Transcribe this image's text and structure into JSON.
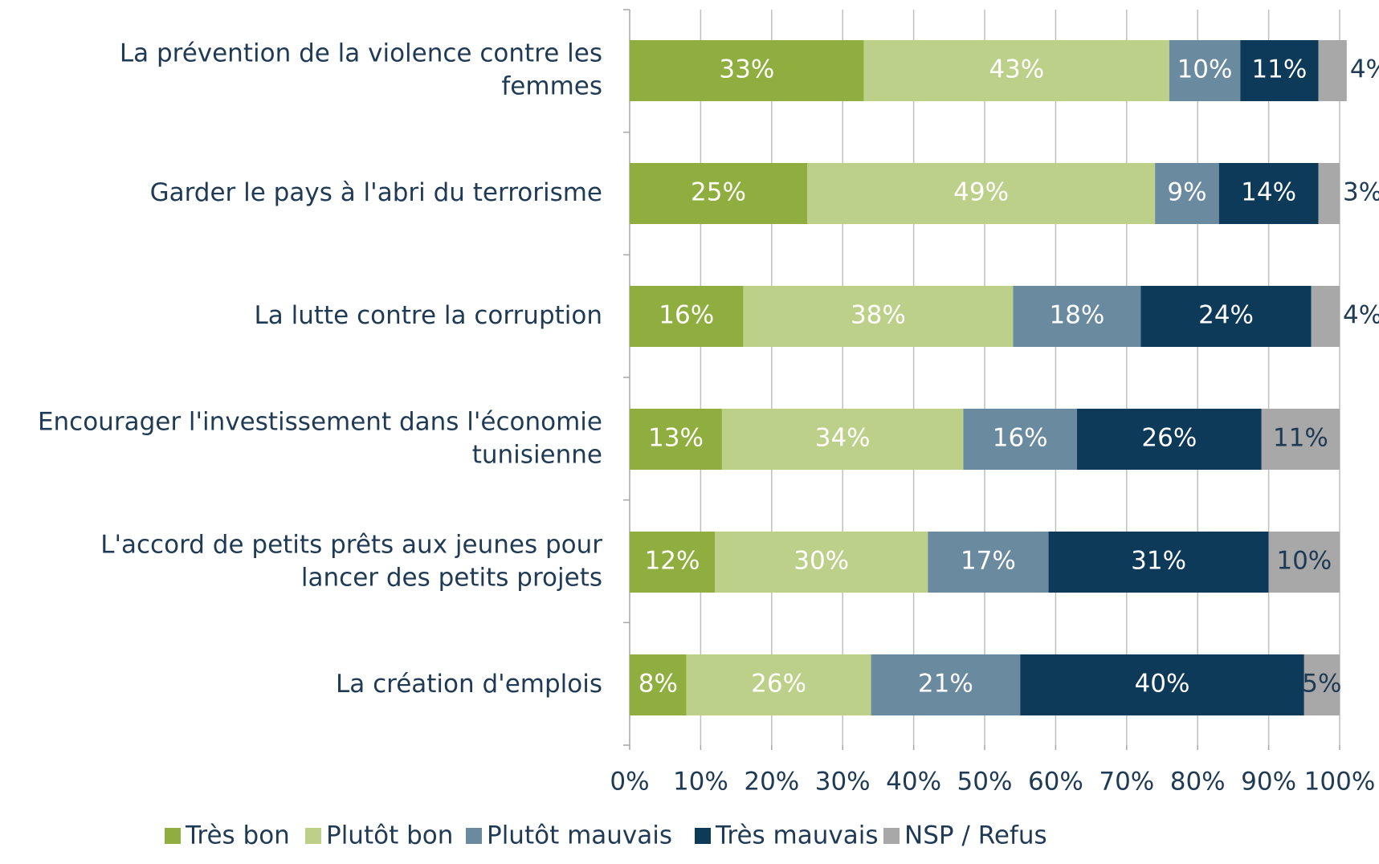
{
  "chart_data": {
    "type": "stacked_bar_horizontal",
    "categories": [
      [
        "La prévention de la violence contre les",
        "femmes"
      ],
      [
        "Garder le pays à l'abri du terrorisme"
      ],
      [
        "La lutte contre la corruption"
      ],
      [
        "Encourager l'investissement dans l'économie",
        "tunisienne"
      ],
      [
        "L'accord de petits prêts aux jeunes pour",
        "lancer des petits projets"
      ],
      [
        "La création d'emplois"
      ]
    ],
    "series": [
      {
        "name": "Très bon",
        "color": "#8fae3f",
        "values": [
          33,
          25,
          16,
          13,
          12,
          8
        ],
        "value_labels": [
          "33%",
          "25%",
          "16%",
          "13%",
          "12%",
          "8%"
        ]
      },
      {
        "name": "Plutôt bon",
        "color": "#bdd08a",
        "values": [
          43,
          49,
          38,
          34,
          30,
          26
        ],
        "value_labels": [
          "43%",
          "49%",
          "38%",
          "34%",
          "30%",
          "26%"
        ]
      },
      {
        "name": "Plutôt mauvais",
        "color": "#6a8aa0",
        "values": [
          10,
          9,
          18,
          16,
          17,
          21
        ],
        "value_labels": [
          "10%",
          "9%",
          "18%",
          "16%",
          "17%",
          "21%"
        ]
      },
      {
        "name": "Très mauvais",
        "color": "#0e3a5a",
        "values": [
          11,
          14,
          24,
          26,
          31,
          40
        ],
        "value_labels": [
          "11%",
          "14%",
          "24%",
          "26%",
          "31%",
          "40%"
        ]
      },
      {
        "name": "NSP / Refus",
        "color": "#a8a8a8",
        "values": [
          4,
          3,
          4,
          11,
          10,
          5
        ],
        "value_labels": [
          "4%",
          "3%",
          "4%",
          "11%",
          "10%",
          "5%"
        ]
      }
    ],
    "xlim": [
      0,
      100
    ],
    "xticks": [
      {
        "value": 0,
        "label": "0%"
      },
      {
        "value": 10,
        "label": "10%"
      },
      {
        "value": 20,
        "label": "20%"
      },
      {
        "value": 30,
        "label": "30%"
      },
      {
        "value": 40,
        "label": "40%"
      },
      {
        "value": 50,
        "label": "50%"
      },
      {
        "value": 60,
        "label": "60%"
      },
      {
        "value": 70,
        "label": "70%"
      },
      {
        "value": 80,
        "label": "80%"
      },
      {
        "value": 90,
        "label": "90%"
      },
      {
        "value": 100,
        "label": "100%"
      }
    ],
    "grid": true,
    "legend": "bottom"
  }
}
